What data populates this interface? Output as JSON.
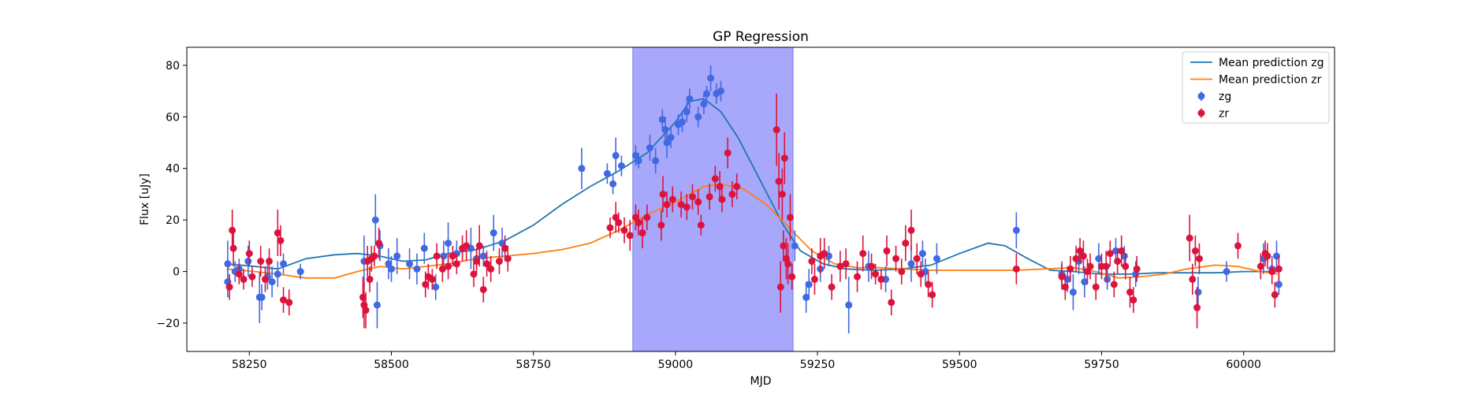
{
  "chart_data": {
    "type": "scatter",
    "title": "GP Regression",
    "xlabel": "MJD",
    "ylabel": "Flux [uJy]",
    "xlim": [
      58140,
      60160
    ],
    "ylim": [
      -31,
      87
    ],
    "xticks": [
      58250,
      58500,
      58750,
      59000,
      59250,
      59500,
      59750,
      60000
    ],
    "yticks": [
      -20,
      0,
      20,
      40,
      60,
      80
    ],
    "legend_position": "top-right",
    "legend": [
      "Mean prediction zg",
      "Mean prediction zr",
      "zg",
      "zr"
    ],
    "shaded_region": {
      "x": [
        58925,
        59207
      ],
      "color": "#a7a7fb"
    },
    "colors": {
      "zg_line": "#1f77b4",
      "zr_line": "#ff7f0e",
      "zg_points": "#4169e1",
      "zr_points": "#dc143c"
    },
    "mean_zg": [
      [
        58210,
        3
      ],
      [
        58260,
        2
      ],
      [
        58300,
        1
      ],
      [
        58350,
        5
      ],
      [
        58400,
        6.5
      ],
      [
        58440,
        7
      ],
      [
        58480,
        6
      ],
      [
        58520,
        4
      ],
      [
        58560,
        4.5
      ],
      [
        58600,
        7
      ],
      [
        58650,
        8.5
      ],
      [
        58700,
        12
      ],
      [
        58750,
        18
      ],
      [
        58800,
        26
      ],
      [
        58850,
        33
      ],
      [
        58900,
        39
      ],
      [
        58950,
        46
      ],
      [
        59000,
        58
      ],
      [
        59025,
        66
      ],
      [
        59050,
        67
      ],
      [
        59080,
        62
      ],
      [
        59110,
        52
      ],
      [
        59150,
        35
      ],
      [
        59190,
        18
      ],
      [
        59220,
        8
      ],
      [
        59260,
        3
      ],
      [
        59300,
        1
      ],
      [
        59350,
        0.5
      ],
      [
        59400,
        1
      ],
      [
        59450,
        2.5
      ],
      [
        59500,
        7
      ],
      [
        59550,
        11
      ],
      [
        59580,
        10
      ],
      [
        59620,
        5
      ],
      [
        59660,
        0.5
      ],
      [
        59700,
        0
      ],
      [
        59750,
        -1
      ],
      [
        59800,
        -1
      ],
      [
        59850,
        -0.5
      ],
      [
        59900,
        -0.5
      ],
      [
        59950,
        -0.5
      ],
      [
        60000,
        0
      ],
      [
        60060,
        0
      ]
    ],
    "mean_zr": [
      [
        58210,
        1
      ],
      [
        58260,
        0
      ],
      [
        58300,
        -1
      ],
      [
        58350,
        -2.5
      ],
      [
        58400,
        -2.5
      ],
      [
        58440,
        0
      ],
      [
        58480,
        2
      ],
      [
        58520,
        1
      ],
      [
        58560,
        2
      ],
      [
        58600,
        3
      ],
      [
        58650,
        5
      ],
      [
        58700,
        6
      ],
      [
        58750,
        7
      ],
      [
        58800,
        8.5
      ],
      [
        58850,
        11
      ],
      [
        58900,
        16
      ],
      [
        58950,
        22
      ],
      [
        59000,
        27
      ],
      [
        59050,
        33
      ],
      [
        59080,
        34
      ],
      [
        59120,
        32
      ],
      [
        59160,
        26
      ],
      [
        59200,
        17
      ],
      [
        59240,
        8
      ],
      [
        59280,
        3
      ],
      [
        59320,
        1.5
      ],
      [
        59360,
        1.5
      ],
      [
        59400,
        1
      ],
      [
        59450,
        0.5
      ],
      [
        59500,
        0.5
      ],
      [
        59550,
        0.5
      ],
      [
        59600,
        0.5
      ],
      [
        59650,
        1
      ],
      [
        59700,
        1.5
      ],
      [
        59740,
        0
      ],
      [
        59780,
        -2.5
      ],
      [
        59820,
        -2
      ],
      [
        59860,
        -1
      ],
      [
        59900,
        1
      ],
      [
        59950,
        2.5
      ],
      [
        59990,
        2
      ],
      [
        60030,
        0
      ],
      [
        60060,
        -1
      ]
    ],
    "zg_points": [
      [
        58212,
        3,
        9
      ],
      [
        58212,
        -4,
        6
      ],
      [
        58225,
        0,
        4
      ],
      [
        58232,
        1,
        4
      ],
      [
        58248,
        4,
        6
      ],
      [
        58268,
        -10,
        10
      ],
      [
        58272,
        -10,
        5
      ],
      [
        58282,
        -2,
        5
      ],
      [
        58290,
        -4,
        6
      ],
      [
        58300,
        -1,
        5
      ],
      [
        58310,
        3,
        4
      ],
      [
        58340,
        0,
        3
      ],
      [
        58452,
        4,
        10
      ],
      [
        58472,
        20,
        10
      ],
      [
        58475,
        -13,
        9
      ],
      [
        58480,
        10,
        6
      ],
      [
        58495,
        3,
        6
      ],
      [
        58500,
        1,
        5
      ],
      [
        58510,
        6,
        7
      ],
      [
        58532,
        3,
        6
      ],
      [
        58545,
        1,
        6
      ],
      [
        58558,
        9,
        6
      ],
      [
        58578,
        -6,
        5
      ],
      [
        58592,
        6,
        6
      ],
      [
        58600,
        11,
        8
      ],
      [
        58615,
        7,
        5
      ],
      [
        58640,
        9,
        8
      ],
      [
        58650,
        5,
        4
      ],
      [
        58662,
        6,
        4
      ],
      [
        58680,
        15,
        7
      ],
      [
        58695,
        11,
        6
      ],
      [
        58835,
        40,
        8
      ],
      [
        58880,
        38,
        4
      ],
      [
        58890,
        34,
        4
      ],
      [
        58895,
        45,
        7
      ],
      [
        58905,
        41,
        4
      ],
      [
        58930,
        45,
        4
      ],
      [
        58935,
        43,
        3
      ],
      [
        58955,
        48,
        5
      ],
      [
        58965,
        43,
        5
      ],
      [
        58977,
        59,
        4
      ],
      [
        58982,
        55,
        5
      ],
      [
        58985,
        50,
        6
      ],
      [
        58992,
        52,
        4
      ],
      [
        59005,
        57,
        4
      ],
      [
        59012,
        58,
        4
      ],
      [
        59020,
        62,
        4
      ],
      [
        59025,
        67,
        4
      ],
      [
        59040,
        60,
        4
      ],
      [
        59050,
        65,
        4
      ],
      [
        59055,
        69,
        3
      ],
      [
        59062,
        75,
        5
      ],
      [
        59072,
        69,
        4
      ],
      [
        59080,
        70,
        4
      ],
      [
        59210,
        10,
        6
      ],
      [
        59230,
        -10,
        6
      ],
      [
        59235,
        -5,
        6
      ],
      [
        59255,
        1,
        5
      ],
      [
        59270,
        6,
        4
      ],
      [
        59305,
        -13,
        11
      ],
      [
        59340,
        2,
        6
      ],
      [
        59370,
        -3,
        5
      ],
      [
        59415,
        3,
        7
      ],
      [
        59435,
        7,
        5
      ],
      [
        59440,
        0,
        5
      ],
      [
        59460,
        5,
        6
      ],
      [
        59600,
        16,
        7
      ],
      [
        59680,
        -1,
        5
      ],
      [
        59690,
        -3,
        5
      ],
      [
        59700,
        -8,
        7
      ],
      [
        59710,
        4,
        5
      ],
      [
        59720,
        -4,
        6
      ],
      [
        59745,
        5,
        6
      ],
      [
        59760,
        -3,
        4
      ],
      [
        59775,
        8,
        5
      ],
      [
        59790,
        6,
        4
      ],
      [
        59810,
        -1,
        5
      ],
      [
        59920,
        -8,
        6
      ],
      [
        59970,
        0,
        4
      ],
      [
        60035,
        5,
        6
      ],
      [
        60050,
        1,
        5
      ],
      [
        60058,
        6,
        6
      ],
      [
        60062,
        -5,
        4
      ]
    ],
    "zr_points": [
      [
        58215,
        -6,
        5
      ],
      [
        58220,
        16,
        8
      ],
      [
        58222,
        9,
        7
      ],
      [
        58232,
        -1,
        4
      ],
      [
        58240,
        -3,
        4
      ],
      [
        58250,
        7,
        5
      ],
      [
        58255,
        -2,
        4
      ],
      [
        58270,
        4,
        6
      ],
      [
        58278,
        -3,
        5
      ],
      [
        58285,
        4,
        5
      ],
      [
        58300,
        15,
        9
      ],
      [
        58305,
        12,
        6
      ],
      [
        58310,
        -11,
        5
      ],
      [
        58320,
        -12,
        5
      ],
      [
        58450,
        -10,
        8
      ],
      [
        58452,
        -13,
        9
      ],
      [
        58455,
        -15,
        7
      ],
      [
        58458,
        4,
        6
      ],
      [
        58462,
        -3,
        5
      ],
      [
        58465,
        5,
        5
      ],
      [
        58470,
        6,
        4
      ],
      [
        58478,
        11,
        6
      ],
      [
        58560,
        -5,
        5
      ],
      [
        58565,
        -2,
        5
      ],
      [
        58572,
        -3,
        4
      ],
      [
        58580,
        6,
        5
      ],
      [
        58590,
        1,
        5
      ],
      [
        58600,
        2,
        5
      ],
      [
        58608,
        6,
        4
      ],
      [
        58615,
        3,
        4
      ],
      [
        58625,
        9,
        5
      ],
      [
        58632,
        10,
        6
      ],
      [
        58645,
        -1,
        5
      ],
      [
        58650,
        4,
        5
      ],
      [
        58655,
        10,
        8
      ],
      [
        58662,
        -7,
        5
      ],
      [
        58668,
        3,
        5
      ],
      [
        58675,
        1,
        5
      ],
      [
        58690,
        4,
        5
      ],
      [
        58700,
        9,
        5
      ],
      [
        58705,
        5,
        5
      ],
      [
        58885,
        17,
        4
      ],
      [
        58895,
        21,
        6
      ],
      [
        58900,
        19,
        4
      ],
      [
        58910,
        16,
        5
      ],
      [
        58920,
        14,
        6
      ],
      [
        58930,
        21,
        5
      ],
      [
        58935,
        19,
        5
      ],
      [
        58942,
        15,
        6
      ],
      [
        58950,
        21,
        5
      ],
      [
        58975,
        18,
        6
      ],
      [
        58978,
        30,
        7
      ],
      [
        58985,
        26,
        5
      ],
      [
        58995,
        28,
        5
      ],
      [
        59010,
        26,
        5
      ],
      [
        59020,
        25,
        5
      ],
      [
        59030,
        29,
        5
      ],
      [
        59040,
        27,
        5
      ],
      [
        59045,
        18,
        4
      ],
      [
        59060,
        29,
        5
      ],
      [
        59070,
        36,
        5
      ],
      [
        59078,
        33,
        6
      ],
      [
        59082,
        28,
        5
      ],
      [
        59092,
        46,
        6
      ],
      [
        59100,
        30,
        5
      ],
      [
        59108,
        33,
        5
      ],
      [
        59178,
        55,
        14
      ],
      [
        59182,
        35,
        11
      ],
      [
        59185,
        -6,
        10
      ],
      [
        59188,
        30,
        10
      ],
      [
        59190,
        10,
        6
      ],
      [
        59192,
        44,
        10
      ],
      [
        59195,
        5,
        8
      ],
      [
        59198,
        3,
        8
      ],
      [
        59202,
        21,
        9
      ],
      [
        59205,
        -2,
        5
      ],
      [
        59240,
        4,
        5
      ],
      [
        59245,
        -3,
        6
      ],
      [
        59255,
        6,
        7
      ],
      [
        59262,
        7,
        6
      ],
      [
        59275,
        -6,
        5
      ],
      [
        59290,
        2,
        6
      ],
      [
        59300,
        3,
        6
      ],
      [
        59320,
        -2,
        6
      ],
      [
        59330,
        7,
        7
      ],
      [
        59345,
        2,
        5
      ],
      [
        59352,
        -1,
        4
      ],
      [
        59362,
        -3,
        4
      ],
      [
        59372,
        8,
        6
      ],
      [
        59380,
        -12,
        5
      ],
      [
        59388,
        5,
        5
      ],
      [
        59398,
        0,
        5
      ],
      [
        59405,
        11,
        7
      ],
      [
        59415,
        16,
        8
      ],
      [
        59425,
        5,
        6
      ],
      [
        59432,
        -1,
        5
      ],
      [
        59445,
        -5,
        5
      ],
      [
        59452,
        -9,
        5
      ],
      [
        59600,
        1,
        6
      ],
      [
        59680,
        -2,
        5
      ],
      [
        59686,
        -6,
        5
      ],
      [
        59695,
        1,
        5
      ],
      [
        59705,
        5,
        5
      ],
      [
        59712,
        8,
        5
      ],
      [
        59718,
        6,
        6
      ],
      [
        59725,
        0,
        5
      ],
      [
        59730,
        2,
        5
      ],
      [
        59740,
        -6,
        5
      ],
      [
        59750,
        2,
        5
      ],
      [
        59758,
        2,
        6
      ],
      [
        59765,
        7,
        5
      ],
      [
        59772,
        -5,
        5
      ],
      [
        59778,
        4,
        5
      ],
      [
        59785,
        8,
        6
      ],
      [
        59792,
        2,
        5
      ],
      [
        59800,
        -8,
        6
      ],
      [
        59806,
        -11,
        5
      ],
      [
        59812,
        1,
        5
      ],
      [
        59905,
        13,
        9
      ],
      [
        59910,
        -3,
        6
      ],
      [
        59915,
        8,
        6
      ],
      [
        59918,
        -14,
        8
      ],
      [
        59922,
        5,
        6
      ],
      [
        59990,
        10,
        5
      ],
      [
        60030,
        2,
        5
      ],
      [
        60038,
        7,
        5
      ],
      [
        60042,
        6,
        5
      ],
      [
        60050,
        0,
        5
      ],
      [
        60055,
        -9,
        5
      ],
      [
        60062,
        1,
        5
      ]
    ]
  }
}
